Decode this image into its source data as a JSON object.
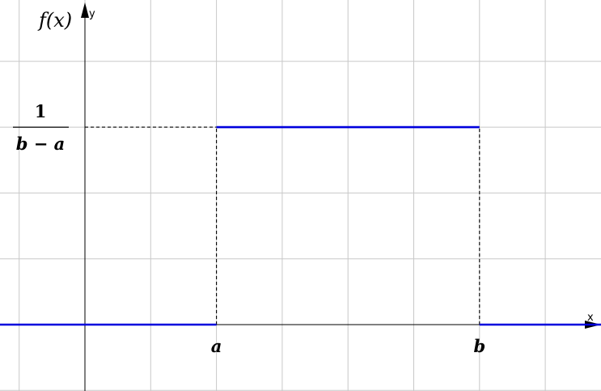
{
  "chart_data": {
    "type": "line",
    "title": "",
    "ylabel_math": "f(x)",
    "xaxis_name": "x",
    "yaxis_name": "y",
    "grid": true,
    "xlim": [
      -1.3,
      7.85
    ],
    "ylim": [
      -1,
      4.9
    ],
    "x_ticks": [
      {
        "value": 2,
        "label": "a"
      },
      {
        "value": 6,
        "label": "b"
      }
    ],
    "y_ticks": [
      {
        "value": 3,
        "label_numerator": "1",
        "label_denominator": "b − a"
      }
    ],
    "series": [
      {
        "color": "#0000dd",
        "segments": [
          [
            [
              -1.3,
              0
            ],
            [
              2,
              0
            ]
          ],
          [
            [
              2,
              3
            ],
            [
              6,
              3
            ]
          ],
          [
            [
              6,
              0
            ],
            [
              7.85,
              0
            ]
          ]
        ]
      }
    ],
    "guides": [
      {
        "style": "dashed",
        "points": [
          [
            0,
            3
          ],
          [
            2,
            3
          ]
        ]
      },
      {
        "style": "dashed",
        "points": [
          [
            2,
            0
          ],
          [
            2,
            3
          ]
        ]
      },
      {
        "style": "dashed",
        "points": [
          [
            6,
            0
          ],
          [
            6,
            3
          ]
        ]
      }
    ]
  }
}
